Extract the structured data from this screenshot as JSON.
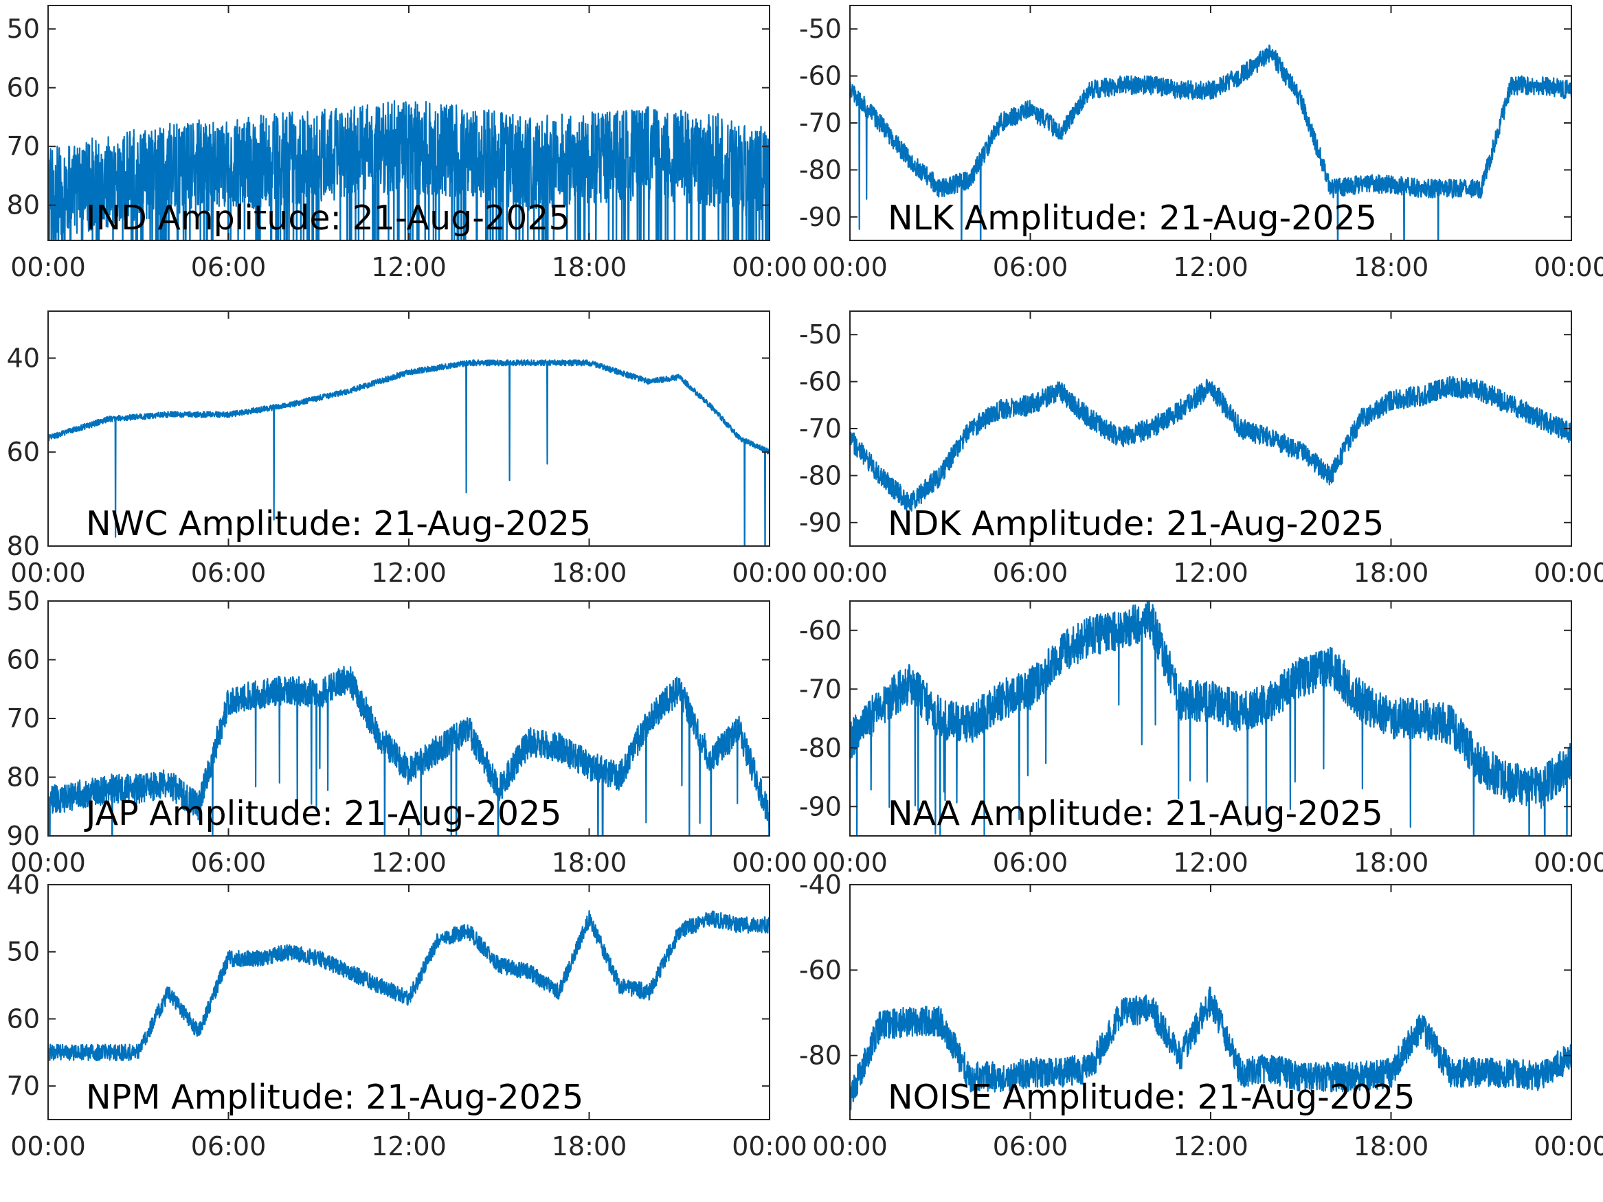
{
  "figure": {
    "line_color": "#0072BD",
    "axis_color": "#262626",
    "background": "#ffffff"
  },
  "chart_data": [
    {
      "type": "line",
      "label": "IND Amplitude: 21-Aug-2025",
      "x": [
        "00:00",
        "02:00",
        "04:00",
        "06:00",
        "08:00",
        "10:00",
        "12:00",
        "14:00",
        "16:00",
        "18:00",
        "20:00",
        "22:00",
        "24:00"
      ],
      "x_ticks": [
        "00:00",
        "06:00",
        "12:00",
        "18:00",
        "00:00"
      ],
      "y_ticks": [
        "50",
        "60",
        "70",
        "80"
      ],
      "ylim": [
        -86,
        -46
      ],
      "grid": false,
      "series": [
        {
          "values": [
            -78,
            -76,
            -74,
            -73,
            -72,
            -71,
            -70,
            -71,
            -73,
            -72,
            -71,
            -72,
            -75
          ],
          "noise": 8,
          "dropouts": "dense"
        }
      ]
    },
    {
      "type": "line",
      "label": "NLK Amplitude: 21-Aug-2025",
      "x": [
        "00:00",
        "01:00",
        "02:00",
        "03:00",
        "04:00",
        "05:00",
        "06:00",
        "07:00",
        "08:00",
        "09:00",
        "10:00",
        "11:00",
        "12:00",
        "13:00",
        "14:00",
        "15:00",
        "16:00",
        "17:00",
        "18:00",
        "19:00",
        "20:00",
        "21:00",
        "22:00",
        "23:00",
        "24:00"
      ],
      "x_ticks": [
        "00:00",
        "06:00",
        "12:00",
        "18:00",
        "00:00"
      ],
      "y_ticks": [
        "-50",
        "-60",
        "-70",
        "-80",
        "-90"
      ],
      "ylim": [
        -95,
        -45
      ],
      "grid": false,
      "series": [
        {
          "values": [
            -63,
            -70,
            -78,
            -84,
            -82,
            -70,
            -67,
            -72,
            -63,
            -62,
            -62,
            -63,
            -63,
            -60,
            -55,
            -65,
            -84,
            -83,
            -83,
            -84,
            -84,
            -84,
            -62,
            -62,
            -63
          ],
          "noise": 2,
          "dropouts": "few"
        }
      ]
    },
    {
      "type": "line",
      "label": "NWC Amplitude: 21-Aug-2025",
      "x": [
        "00:00",
        "02:00",
        "04:00",
        "06:00",
        "08:00",
        "10:00",
        "12:00",
        "14:00",
        "16:00",
        "18:00",
        "20:00",
        "21:00",
        "22:00",
        "23:00",
        "24:00"
      ],
      "x_ticks": [
        "00:00",
        "06:00",
        "12:00",
        "18:00",
        "00:00"
      ],
      "y_ticks": [
        "40",
        "60",
        "80"
      ],
      "ylim": [
        -80,
        -30
      ],
      "grid": false,
      "series": [
        {
          "values": [
            -57,
            -53,
            -52,
            -52,
            -50,
            -47,
            -43,
            -41,
            -41,
            -41,
            -45,
            -44,
            -50,
            -57,
            -60
          ],
          "noise": 0.6,
          "dropouts": "few"
        }
      ]
    },
    {
      "type": "line",
      "label": "NDK Amplitude: 21-Aug-2025",
      "x": [
        "00:00",
        "01:00",
        "02:00",
        "03:00",
        "04:00",
        "05:00",
        "06:00",
        "07:00",
        "08:00",
        "09:00",
        "10:00",
        "11:00",
        "12:00",
        "13:00",
        "14:00",
        "15:00",
        "16:00",
        "17:00",
        "18:00",
        "19:00",
        "20:00",
        "21:00",
        "22:00",
        "23:00",
        "24:00"
      ],
      "x_ticks": [
        "00:00",
        "06:00",
        "12:00",
        "18:00",
        "00:00"
      ],
      "y_ticks": [
        "-50",
        "-60",
        "-70",
        "-80",
        "-90"
      ],
      "ylim": [
        -95,
        -45
      ],
      "grid": false,
      "series": [
        {
          "values": [
            -72,
            -80,
            -86,
            -80,
            -70,
            -66,
            -65,
            -62,
            -68,
            -72,
            -70,
            -66,
            -61,
            -70,
            -72,
            -75,
            -80,
            -68,
            -64,
            -63,
            -61,
            -62,
            -65,
            -68,
            -71
          ],
          "noise": 2.2,
          "dropouts": "none"
        }
      ]
    },
    {
      "type": "line",
      "label": "JAP Amplitude: 21-Aug-2025",
      "x": [
        "00:00",
        "01:00",
        "02:00",
        "03:00",
        "04:00",
        "05:00",
        "06:00",
        "07:00",
        "08:00",
        "09:00",
        "10:00",
        "11:00",
        "12:00",
        "13:00",
        "14:00",
        "15:00",
        "16:00",
        "17:00",
        "18:00",
        "19:00",
        "20:00",
        "21:00",
        "22:00",
        "23:00",
        "24:00"
      ],
      "x_ticks": [
        "00:00",
        "06:00",
        "12:00",
        "18:00",
        "00:00"
      ],
      "y_ticks": [
        "50",
        "60",
        "70",
        "80",
        "90"
      ],
      "ylim": [
        -90,
        -50
      ],
      "grid": false,
      "series": [
        {
          "values": [
            -84,
            -83,
            -82,
            -82,
            -81,
            -85,
            -67,
            -66,
            -65,
            -66,
            -63,
            -73,
            -79,
            -75,
            -72,
            -82,
            -74,
            -75,
            -78,
            -80,
            -70,
            -65,
            -77,
            -72,
            -87
          ],
          "noise": 2.5,
          "dropouts": "some"
        }
      ]
    },
    {
      "type": "line",
      "label": "NAA Amplitude: 21-Aug-2025",
      "x": [
        "00:00",
        "01:00",
        "02:00",
        "03:00",
        "04:00",
        "05:00",
        "06:00",
        "07:00",
        "08:00",
        "09:00",
        "10:00",
        "11:00",
        "12:00",
        "13:00",
        "14:00",
        "15:00",
        "16:00",
        "17:00",
        "18:00",
        "19:00",
        "20:00",
        "21:00",
        "22:00",
        "23:00",
        "24:00"
      ],
      "x_ticks": [
        "00:00",
        "06:00",
        "12:00",
        "18:00",
        "00:00"
      ],
      "y_ticks": [
        "-60",
        "-70",
        "-80",
        "-90"
      ],
      "ylim": [
        -95,
        -55
      ],
      "grid": false,
      "series": [
        {
          "values": [
            -79,
            -73,
            -69,
            -75,
            -76,
            -72,
            -70,
            -64,
            -61,
            -60,
            -58,
            -72,
            -72,
            -74,
            -72,
            -68,
            -66,
            -72,
            -75,
            -75,
            -76,
            -83,
            -86,
            -87,
            -82
          ],
          "noise": 3.5,
          "dropouts": "some"
        }
      ]
    },
    {
      "type": "line",
      "label": "NPM Amplitude: 21-Aug-2025",
      "x": [
        "00:00",
        "01:00",
        "02:00",
        "03:00",
        "04:00",
        "05:00",
        "06:00",
        "07:00",
        "08:00",
        "09:00",
        "10:00",
        "11:00",
        "12:00",
        "13:00",
        "14:00",
        "15:00",
        "16:00",
        "17:00",
        "18:00",
        "19:00",
        "20:00",
        "21:00",
        "22:00",
        "23:00",
        "24:00"
      ],
      "x_ticks": [
        "00:00",
        "06:00",
        "12:00",
        "18:00",
        "00:00"
      ],
      "y_ticks": [
        "40",
        "50",
        "60",
        "70"
      ],
      "ylim": [
        -75,
        -40
      ],
      "grid": false,
      "series": [
        {
          "values": [
            -65,
            -65,
            -65,
            -65,
            -56,
            -62,
            -51,
            -51,
            -50,
            -51,
            -53,
            -55,
            -57,
            -48,
            -47,
            -52,
            -53,
            -56,
            -45,
            -55,
            -56,
            -47,
            -45,
            -46,
            -46
          ],
          "noise": 1.2,
          "dropouts": "none"
        }
      ]
    },
    {
      "type": "line",
      "label": "NOISE Amplitude: 21-Aug-2025",
      "x": [
        "00:00",
        "01:00",
        "02:00",
        "03:00",
        "04:00",
        "05:00",
        "06:00",
        "07:00",
        "08:00",
        "09:00",
        "10:00",
        "11:00",
        "12:00",
        "13:00",
        "14:00",
        "15:00",
        "16:00",
        "17:00",
        "18:00",
        "19:00",
        "20:00",
        "21:00",
        "22:00",
        "23:00",
        "24:00"
      ],
      "x_ticks": [
        "00:00",
        "06:00",
        "12:00",
        "18:00",
        "00:00"
      ],
      "y_ticks": [
        "-40",
        "-60",
        "-80"
      ],
      "ylim": [
        -95,
        -40
      ],
      "grid": false,
      "series": [
        {
          "values": [
            -90,
            -73,
            -72,
            -72,
            -85,
            -85,
            -84,
            -84,
            -83,
            -70,
            -69,
            -80,
            -67,
            -84,
            -83,
            -85,
            -85,
            -85,
            -84,
            -73,
            -84,
            -84,
            -84,
            -85,
            -80
          ],
          "noise": 3.5,
          "dropouts": "none"
        }
      ]
    }
  ]
}
